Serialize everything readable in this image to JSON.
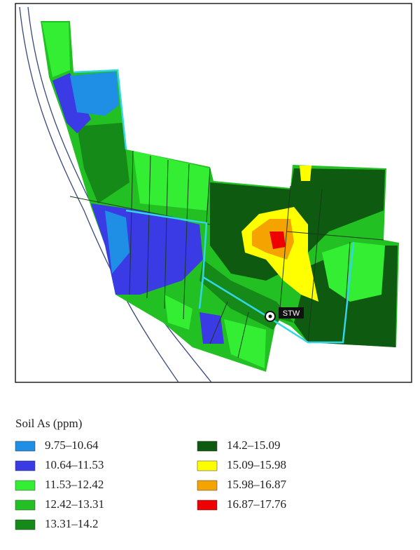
{
  "map": {
    "marker_label": "STW"
  },
  "legend": {
    "title": "Soil As (ppm)",
    "items": [
      {
        "label": "9.75–10.64",
        "color": "#1f8fe6"
      },
      {
        "label": "10.64–11.53",
        "color": "#3b3be6"
      },
      {
        "label": "11.53–12.42",
        "color": "#33ee33"
      },
      {
        "label": "12.42–13.31",
        "color": "#22c022"
      },
      {
        "label": "13.31–14.2",
        "color": "#158a18"
      },
      {
        "label": "14.2–15.09",
        "color": "#0d5a10"
      },
      {
        "label": "15.09–15.98",
        "color": "#ffff00"
      },
      {
        "label": "15.98–16.87",
        "color": "#f5a300"
      },
      {
        "label": "16.87–17.76",
        "color": "#ee0000"
      }
    ]
  }
}
